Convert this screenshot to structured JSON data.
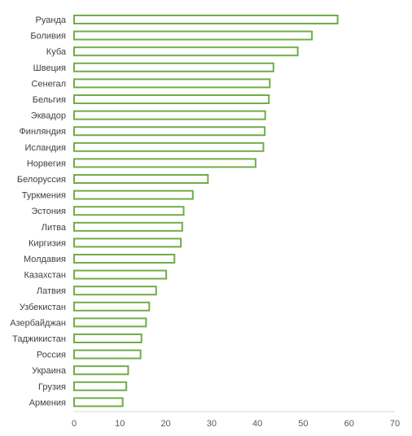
{
  "chart_data": {
    "type": "bar",
    "orientation": "horizontal",
    "categories": [
      "Руанда",
      "Боливия",
      "Куба",
      "Швеция",
      "Сенегал",
      "Бельгия",
      "Эквадор",
      "Финляндия",
      "Исландия",
      "Норвегия",
      "Белоруссия",
      "Туркмения",
      "Эстония",
      "Литва",
      "Киргизия",
      "Молдавия",
      "Казахстан",
      "Латвия",
      "Узбекистан",
      "Азербайджан",
      "Таджикистан",
      "Россия",
      "Украина",
      "Грузия",
      "Армения"
    ],
    "values": [
      57.5,
      51.9,
      48.8,
      43.5,
      42.7,
      42.5,
      41.7,
      41.6,
      41.3,
      39.6,
      29.2,
      25.9,
      23.9,
      23.6,
      23.3,
      21.9,
      20.1,
      17.9,
      16.4,
      15.7,
      14.7,
      14.5,
      11.8,
      11.4,
      10.6
    ],
    "xlim": [
      0,
      70
    ],
    "xticks": [
      0,
      10,
      20,
      30,
      40,
      50,
      60,
      70
    ],
    "colors": {
      "bar_stroke": "#70ad47",
      "bar_fill": "#ffffff"
    },
    "grid": false,
    "legend": "none"
  }
}
